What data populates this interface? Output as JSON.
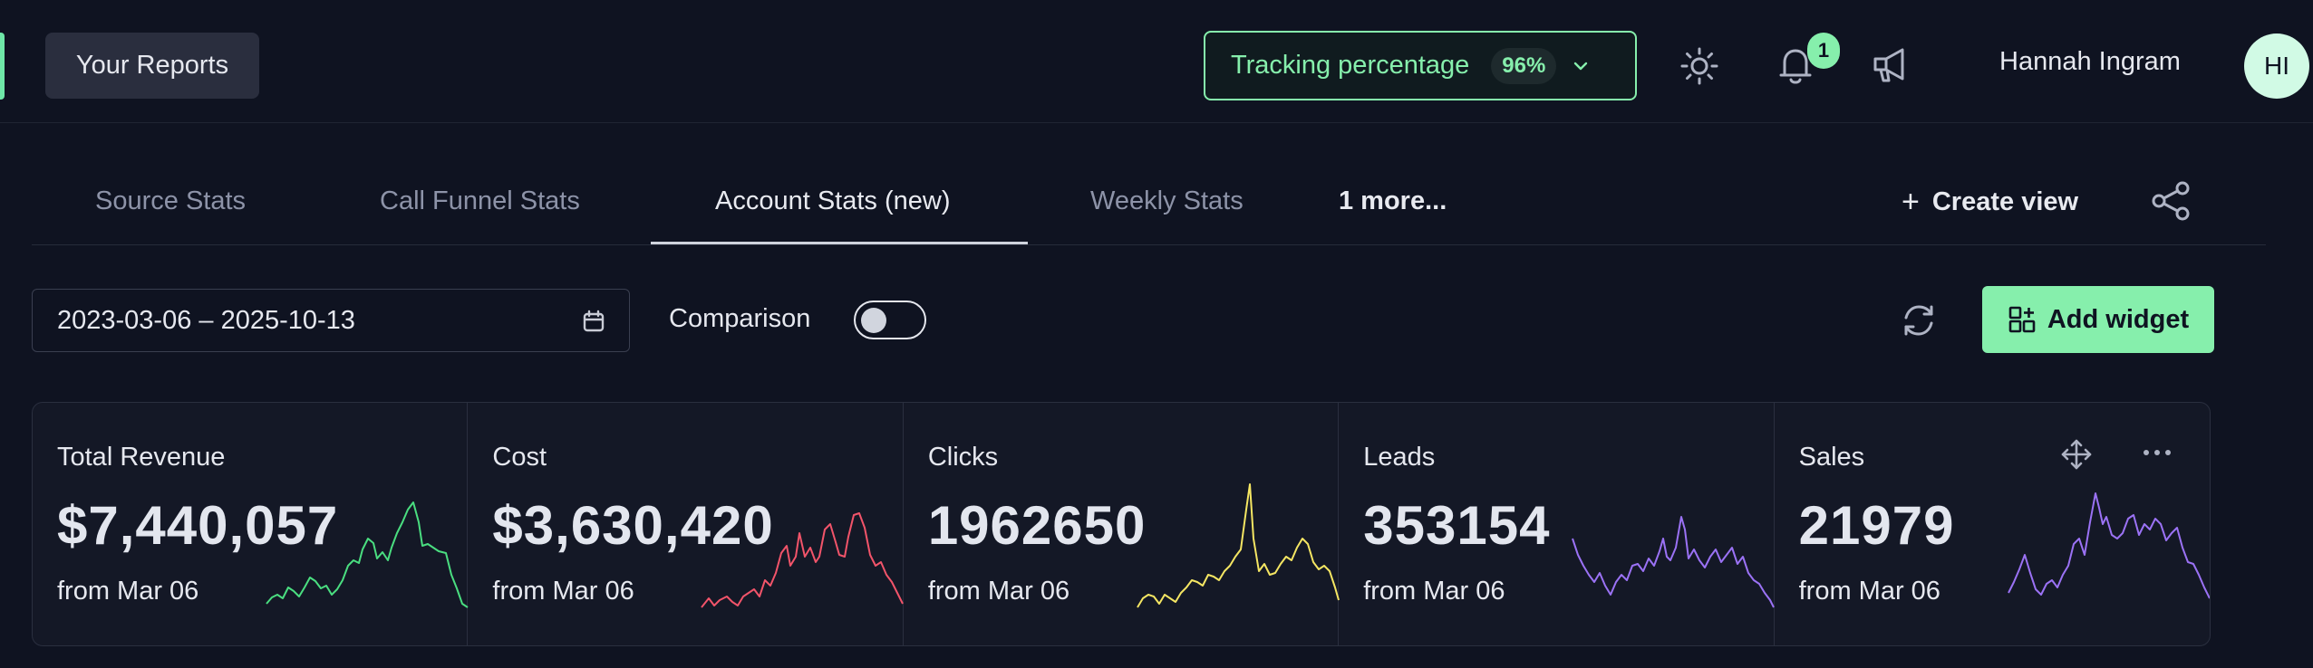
{
  "header": {
    "reports_button": "Your Reports",
    "tracking": {
      "label": "Tracking percentage",
      "value": "96%"
    },
    "notifications_count": "1",
    "user_name": "Hannah Ingram",
    "avatar_initials": "HI"
  },
  "tabs": [
    {
      "label": "Source Stats",
      "active": false
    },
    {
      "label": "Call Funnel Stats",
      "active": false
    },
    {
      "label": "Account Stats (new)",
      "active": true
    },
    {
      "label": "Weekly Stats",
      "active": false
    }
  ],
  "more_tabs": "1 more...",
  "create_view": "Create view",
  "controls": {
    "date_range": "2023-03-06 – 2025-10-13",
    "comparison_label": "Comparison",
    "comparison_on": false,
    "add_widget": "Add widget"
  },
  "cards": [
    {
      "label": "Total Revenue",
      "value": "$7,440,057",
      "sub": "from Mar 06",
      "color": "#4ade80"
    },
    {
      "label": "Cost",
      "value": "$3,630,420",
      "sub": "from Mar 06",
      "color": "#f2546a"
    },
    {
      "label": "Clicks",
      "value": "1962650",
      "sub": "from Mar 06",
      "color": "#f5e663"
    },
    {
      "label": "Leads",
      "value": "353154",
      "sub": "from Mar 06",
      "color": "#9b72f5"
    },
    {
      "label": "Sales",
      "value": "21979",
      "sub": "from Mar 06",
      "color": "#9b72f5"
    }
  ],
  "colors": {
    "accent": "#86efac",
    "background": "#0f1321",
    "card_bg": "#141826"
  }
}
